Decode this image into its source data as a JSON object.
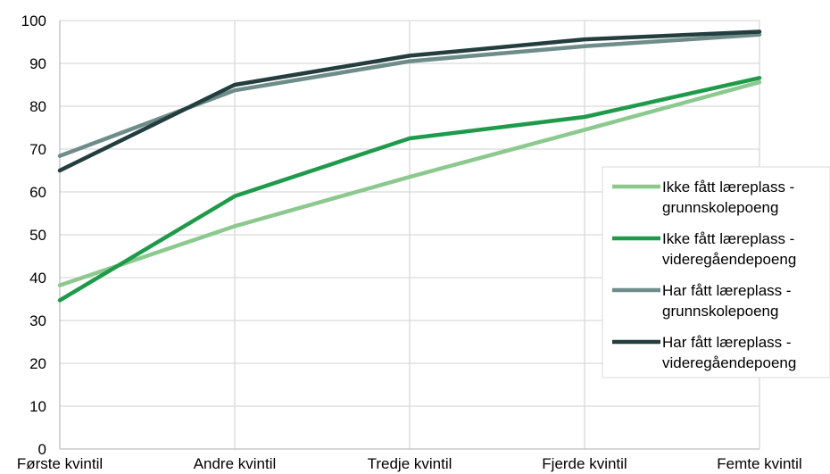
{
  "chart_data": {
    "type": "line",
    "title": "",
    "xlabel": "",
    "ylabel": "",
    "categories": [
      "Første kvintil",
      "Andre kvintil",
      "Tredje kvintil",
      "Fjerde kvintil",
      "Femte kvintil"
    ],
    "ylim": [
      0,
      100
    ],
    "yticks": [
      0,
      10,
      20,
      30,
      40,
      50,
      60,
      70,
      80,
      90,
      100
    ],
    "grid": true,
    "legend_position": "right",
    "series": [
      {
        "name_lines": [
          "Ikke fått læreplass -",
          "grunnskolepoeng"
        ],
        "color": "#8cc98f",
        "values": [
          38.2,
          52,
          63.5,
          74.5,
          85.6
        ]
      },
      {
        "name_lines": [
          "Ikke fått læreplass -",
          "videregåendepoeng"
        ],
        "color": "#1f9a4a",
        "values": [
          34.7,
          59,
          72.5,
          77.5,
          86.6
        ]
      },
      {
        "name_lines": [
          "Har fått læreplass -",
          "grunnskolepoeng"
        ],
        "color": "#6e8c89",
        "values": [
          68.4,
          83.7,
          90.5,
          94,
          96.7
        ]
      },
      {
        "name_lines": [
          "Har fått læreplass -",
          "videregåendepoeng"
        ],
        "color": "#243d3e",
        "values": [
          65,
          85,
          91.8,
          95.6,
          97.4
        ]
      }
    ]
  }
}
